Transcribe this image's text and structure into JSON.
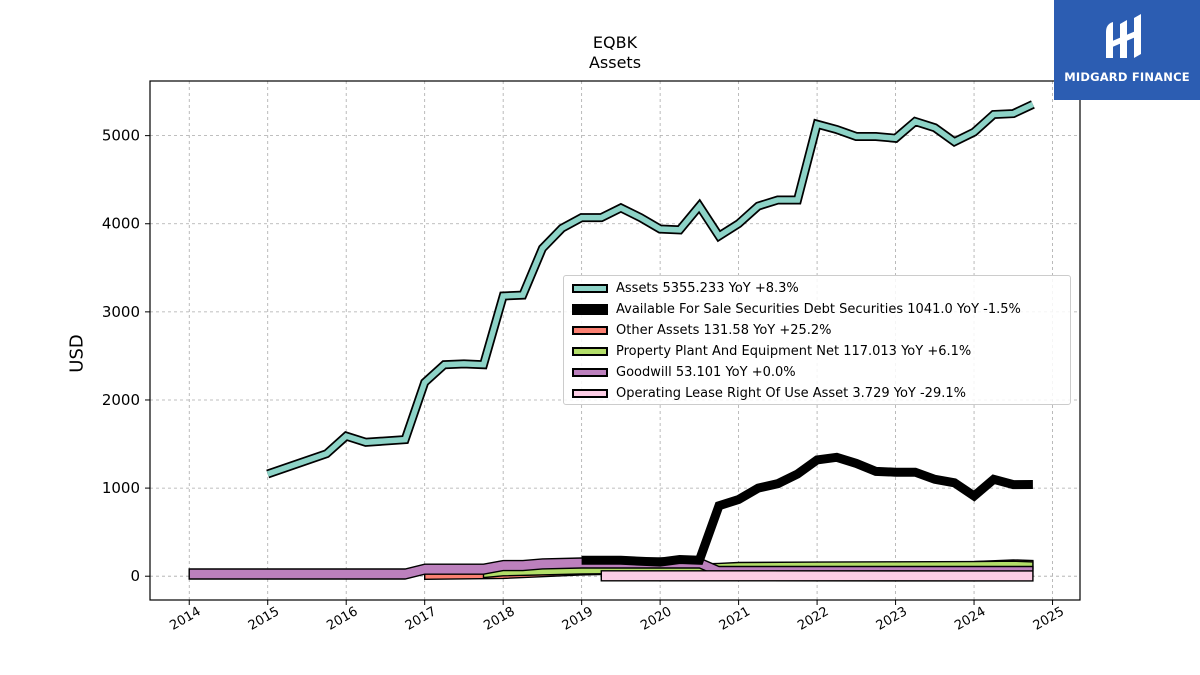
{
  "branding": {
    "logo_text": "MIDGARD FINANCE",
    "logo_color": "#2c5db2"
  },
  "chart_data": {
    "type": "area",
    "title": "EQBK",
    "subtitle": "Assets",
    "ylabel": "USD",
    "xlabel": "",
    "x_ticks": [
      "2014",
      "2015",
      "2016",
      "2017",
      "2018",
      "2019",
      "2020",
      "2021",
      "2022",
      "2023",
      "2024",
      "2025"
    ],
    "y_ticks": [
      "0",
      "1000",
      "2000",
      "3000",
      "4000",
      "5000"
    ],
    "xlim": [
      2013.5,
      2025.35
    ],
    "ylim": [
      -270,
      5620
    ],
    "grid": true,
    "legend_position": "center-right",
    "series": [
      {
        "name": "Assets",
        "legend": "Assets  5355.233 YoY +8.3%",
        "color": "#8dd3c7",
        "style": "thick-outlined-line",
        "x": [
          2015.0,
          2015.75,
          2016.0,
          2016.25,
          2016.75,
          2017.0,
          2017.25,
          2017.5,
          2017.75,
          2018.0,
          2018.25,
          2018.5,
          2018.75,
          2019.0,
          2019.25,
          2019.5,
          2019.75,
          2020.0,
          2020.25,
          2020.5,
          2020.75,
          2021.0,
          2021.25,
          2021.5,
          2021.75,
          2022.0,
          2022.25,
          2022.5,
          2022.75,
          2023.0,
          2023.25,
          2023.5,
          2023.75,
          2024.0,
          2024.25,
          2024.5,
          2024.75
        ],
        "values": [
          1160,
          1390,
          1590,
          1520,
          1550,
          2200,
          2400,
          2410,
          2400,
          3180,
          3190,
          3720,
          3950,
          4070,
          4070,
          4180,
          4070,
          3940,
          3930,
          4200,
          3860,
          4000,
          4200,
          4270,
          4270,
          5130,
          5070,
          4990,
          4990,
          4970,
          5160,
          5090,
          4930,
          5040,
          5240,
          5250,
          5355
        ]
      },
      {
        "name": "Available For Sale Securities Debt Securities",
        "legend": "Available For Sale Securities Debt Securities  1041.0 YoY -1.5%",
        "color": "#000000",
        "style": "thick-line",
        "x": [
          2019.0,
          2019.5,
          2020.0,
          2020.25,
          2020.5,
          2020.75,
          2021.0,
          2021.25,
          2021.5,
          2021.75,
          2022.0,
          2022.25,
          2022.5,
          2022.75,
          2023.0,
          2023.25,
          2023.5,
          2023.75,
          2024.0,
          2024.25,
          2024.5,
          2024.75
        ],
        "values": [
          180,
          180,
          160,
          190,
          180,
          800,
          870,
          1000,
          1050,
          1160,
          1320,
          1350,
          1280,
          1190,
          1180,
          1180,
          1100,
          1060,
          910,
          1100,
          1040,
          1041
        ]
      },
      {
        "name": "Other Assets",
        "legend": "Other Assets  131.58 YoY +25.2%",
        "color": "#fb8072",
        "style": "band",
        "x": [
          2017.0,
          2018.0,
          2018.5,
          2019.0,
          2020.0,
          2021.0,
          2022.0,
          2023.0,
          2024.0,
          2024.5,
          2024.75
        ],
        "values": [
          10,
          20,
          40,
          60,
          80,
          90,
          100,
          110,
          120,
          140,
          131.58
        ]
      },
      {
        "name": "Property Plant And Equipment Net",
        "legend": "Property Plant And Equipment Net  117.013 YoY +6.1%",
        "color": "#b3de69",
        "style": "band",
        "x": [
          2017.75,
          2018.0,
          2019.0,
          2020.0,
          2020.75,
          2021.0,
          2022.0,
          2023.0,
          2024.0,
          2024.5,
          2024.75
        ],
        "values": [
          30,
          50,
          70,
          80,
          100,
          110,
          115,
          118,
          120,
          125,
          117.013
        ]
      },
      {
        "name": "Goodwill",
        "legend": "Goodwill  53.101 YoY +0.0%",
        "color": "#bc80bd",
        "style": "band",
        "x": [
          2014.0,
          2015.0,
          2016.0,
          2016.75,
          2017.0,
          2017.75,
          2018.0,
          2018.25,
          2018.5,
          2019.0,
          2020.0,
          2020.5,
          2020.75,
          2021.0,
          2022.0,
          2023.0,
          2024.0,
          2024.75
        ],
        "values": [
          25,
          25,
          25,
          25,
          80,
          80,
          120,
          120,
          140,
          150,
          150,
          150,
          53.1,
          53.1,
          53.1,
          53.1,
          53.1,
          53.101
        ]
      },
      {
        "name": "Operating Lease Right Of Use Asset",
        "legend": "Operating Lease Right Of Use Asset  3.729 YoY -29.1%",
        "color": "#fccde5",
        "style": "band",
        "x": [
          2019.25,
          2024.75
        ],
        "values": [
          5,
          3.729
        ]
      }
    ]
  }
}
